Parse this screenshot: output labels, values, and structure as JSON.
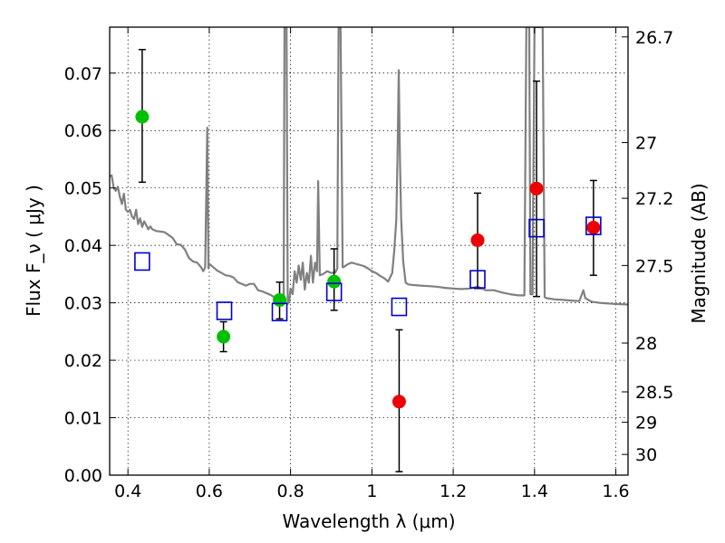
{
  "chart_data": {
    "type": "scatter",
    "xlabel": "Wavelength  λ (μm)",
    "ylabel": "Flux  F_ν  ( μJy )",
    "ylabel_right": "Magnitude (AB)",
    "xlim": [
      0.355,
      1.63
    ],
    "ylim": [
      0.0,
      0.078
    ],
    "grid": true,
    "x_ticks": [
      0.4,
      0.6,
      0.8,
      1.0,
      1.2,
      1.4,
      1.6
    ],
    "x_tick_labels": [
      "0.4",
      "0.6",
      "0.8",
      "1",
      "1.2",
      "1.4",
      "1.6"
    ],
    "y_ticks": [
      0.0,
      0.01,
      0.02,
      0.03,
      0.04,
      0.05,
      0.06,
      0.07
    ],
    "y_tick_labels": [
      "0.00",
      "0.01",
      "0.02",
      "0.03",
      "0.04",
      "0.05",
      "0.06",
      "0.07"
    ],
    "right_ticks": [
      {
        "label": "26.7",
        "flux": 0.0763
      },
      {
        "label": "27",
        "flux": 0.0579
      },
      {
        "label": "27.2",
        "flux": 0.0482
      },
      {
        "label": "27.5",
        "flux": 0.0365
      },
      {
        "label": "28",
        "flux": 0.023
      },
      {
        "label": "28.5",
        "flux": 0.0145
      },
      {
        "label": "29",
        "flux": 0.0092
      },
      {
        "label": "30",
        "flux": 0.0036
      }
    ],
    "series": [
      {
        "marker": "circle",
        "color": "#00c000",
        "points": [
          {
            "x": 0.435,
            "y": 0.0624,
            "err_low": 0.0114,
            "err_high": 0.0117
          },
          {
            "x": 0.635,
            "y": 0.0241,
            "err_low": 0.0026,
            "err_high": 0.0026
          },
          {
            "x": 0.773,
            "y": 0.0305,
            "err_low": 0.0033,
            "err_high": 0.0031
          },
          {
            "x": 0.907,
            "y": 0.0337,
            "err_low": 0.005,
            "err_high": 0.0057
          }
        ]
      },
      {
        "marker": "circle",
        "color": "#ee0000",
        "points": [
          {
            "x": 1.067,
            "y": 0.0128,
            "err_low": 0.0122,
            "err_high": 0.0125
          },
          {
            "x": 1.26,
            "y": 0.0409,
            "err_low": 0.0084,
            "err_high": 0.0082
          },
          {
            "x": 1.405,
            "y": 0.0499,
            "err_low": 0.0188,
            "err_high": 0.0187
          },
          {
            "x": 1.545,
            "y": 0.0431,
            "err_low": 0.0083,
            "err_high": 0.0082
          }
        ]
      },
      {
        "marker": "open-square",
        "color": "#0000cc",
        "points": [
          {
            "x": 0.435,
            "y": 0.0372
          },
          {
            "x": 0.637,
            "y": 0.0286
          },
          {
            "x": 0.773,
            "y": 0.0284
          },
          {
            "x": 0.907,
            "y": 0.0319
          },
          {
            "x": 1.067,
            "y": 0.0293
          },
          {
            "x": 1.26,
            "y": 0.0341
          },
          {
            "x": 1.405,
            "y": 0.043
          },
          {
            "x": 1.545,
            "y": 0.0434
          }
        ]
      },
      {
        "marker": "line",
        "color": "#808080",
        "points": [
          [
            0.355,
            0.052
          ],
          [
            0.36,
            0.0522
          ],
          [
            0.365,
            0.05
          ],
          [
            0.37,
            0.0495
          ],
          [
            0.375,
            0.0502
          ],
          [
            0.38,
            0.0485
          ],
          [
            0.385,
            0.0472
          ],
          [
            0.39,
            0.049
          ],
          [
            0.395,
            0.0462
          ],
          [
            0.4,
            0.0458
          ],
          [
            0.405,
            0.0462
          ],
          [
            0.41,
            0.045
          ],
          [
            0.415,
            0.0446
          ],
          [
            0.42,
            0.0462
          ],
          [
            0.425,
            0.0437
          ],
          [
            0.43,
            0.0447
          ],
          [
            0.435,
            0.0432
          ],
          [
            0.44,
            0.0442
          ],
          [
            0.445,
            0.0435
          ],
          [
            0.45,
            0.0428
          ],
          [
            0.455,
            0.0433
          ],
          [
            0.46,
            0.0428
          ],
          [
            0.47,
            0.0425
          ],
          [
            0.48,
            0.0424
          ],
          [
            0.49,
            0.0423
          ],
          [
            0.5,
            0.0418
          ],
          [
            0.51,
            0.0413
          ],
          [
            0.52,
            0.0402
          ],
          [
            0.53,
            0.0401
          ],
          [
            0.54,
            0.0393
          ],
          [
            0.55,
            0.0378
          ],
          [
            0.56,
            0.0372
          ],
          [
            0.57,
            0.037
          ],
          [
            0.58,
            0.0362
          ],
          [
            0.585,
            0.0355
          ],
          [
            0.59,
            0.0362
          ],
          [
            0.595,
            0.0605
          ],
          [
            0.598,
            0.036
          ],
          [
            0.6,
            0.0368
          ],
          [
            0.61,
            0.0362
          ],
          [
            0.62,
            0.0356
          ],
          [
            0.63,
            0.0352
          ],
          [
            0.64,
            0.0348
          ],
          [
            0.65,
            0.0347
          ],
          [
            0.66,
            0.0344
          ],
          [
            0.67,
            0.0336
          ],
          [
            0.68,
            0.0333
          ],
          [
            0.69,
            0.033
          ],
          [
            0.7,
            0.0333
          ],
          [
            0.71,
            0.0333
          ],
          [
            0.72,
            0.0322
          ],
          [
            0.73,
            0.032
          ],
          [
            0.74,
            0.0317
          ],
          [
            0.75,
            0.0314
          ],
          [
            0.76,
            0.031
          ],
          [
            0.77,
            0.0304
          ],
          [
            0.775,
            0.0312
          ],
          [
            0.78,
            0.0295
          ],
          [
            0.783,
            0.0298
          ],
          [
            0.785,
            0.078
          ],
          [
            0.79,
            0.078
          ],
          [
            0.793,
            0.0298
          ],
          [
            0.797,
            0.0305
          ],
          [
            0.8,
            0.0325
          ],
          [
            0.805,
            0.0315
          ],
          [
            0.81,
            0.0355
          ],
          [
            0.815,
            0.0335
          ],
          [
            0.82,
            0.0365
          ],
          [
            0.825,
            0.034
          ],
          [
            0.83,
            0.037
          ],
          [
            0.835,
            0.0323
          ],
          [
            0.84,
            0.0352
          ],
          [
            0.845,
            0.0335
          ],
          [
            0.85,
            0.0382
          ],
          [
            0.855,
            0.0335
          ],
          [
            0.86,
            0.037
          ],
          [
            0.865,
            0.0355
          ],
          [
            0.868,
            0.0512
          ],
          [
            0.872,
            0.0348
          ],
          [
            0.88,
            0.035
          ],
          [
            0.89,
            0.0355
          ],
          [
            0.9,
            0.0352
          ],
          [
            0.91,
            0.0353
          ],
          [
            0.915,
            0.036
          ],
          [
            0.918,
            0.078
          ],
          [
            0.923,
            0.078
          ],
          [
            0.928,
            0.0362
          ],
          [
            0.93,
            0.0362
          ],
          [
            0.94,
            0.0367
          ],
          [
            0.95,
            0.037
          ],
          [
            0.96,
            0.0368
          ],
          [
            0.97,
            0.0366
          ],
          [
            0.98,
            0.0364
          ],
          [
            0.99,
            0.036
          ],
          [
            1.0,
            0.0355
          ],
          [
            1.01,
            0.0352
          ],
          [
            1.02,
            0.0347
          ],
          [
            1.03,
            0.0343
          ],
          [
            1.04,
            0.0337
          ],
          [
            1.05,
            0.0352
          ],
          [
            1.055,
            0.039
          ],
          [
            1.06,
            0.0445
          ],
          [
            1.063,
            0.0552
          ],
          [
            1.066,
            0.0705
          ],
          [
            1.069,
            0.0552
          ],
          [
            1.072,
            0.0445
          ],
          [
            1.077,
            0.0372
          ],
          [
            1.083,
            0.0335
          ],
          [
            1.09,
            0.0332
          ],
          [
            1.1,
            0.0331
          ],
          [
            1.12,
            0.033
          ],
          [
            1.14,
            0.0329
          ],
          [
            1.16,
            0.0328
          ],
          [
            1.18,
            0.0326
          ],
          [
            1.2,
            0.0325
          ],
          [
            1.22,
            0.0324
          ],
          [
            1.24,
            0.0325
          ],
          [
            1.26,
            0.0328
          ],
          [
            1.28,
            0.0322
          ],
          [
            1.3,
            0.0322
          ],
          [
            1.32,
            0.0318
          ],
          [
            1.34,
            0.0315
          ],
          [
            1.36,
            0.0313
          ],
          [
            1.375,
            0.0313
          ],
          [
            1.38,
            0.078
          ],
          [
            1.387,
            0.078
          ],
          [
            1.39,
            0.0315
          ],
          [
            1.395,
            0.0315
          ],
          [
            1.4,
            0.078
          ],
          [
            1.42,
            0.078
          ],
          [
            1.425,
            0.031
          ],
          [
            1.43,
            0.0308
          ],
          [
            1.45,
            0.0306
          ],
          [
            1.47,
            0.0305
          ],
          [
            1.49,
            0.0304
          ],
          [
            1.51,
            0.0303
          ],
          [
            1.515,
            0.0312
          ],
          [
            1.52,
            0.0322
          ],
          [
            1.525,
            0.0308
          ],
          [
            1.54,
            0.0302
          ],
          [
            1.56,
            0.03
          ],
          [
            1.58,
            0.0299
          ],
          [
            1.6,
            0.0298
          ],
          [
            1.63,
            0.0297
          ]
        ]
      }
    ]
  }
}
